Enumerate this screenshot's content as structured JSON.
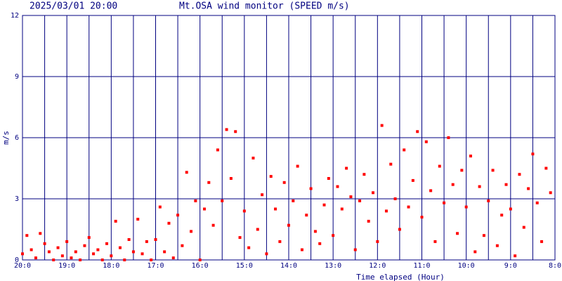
{
  "chart_data": {
    "type": "scatter",
    "timestamp": "2025/03/01 20:00",
    "title": "Mt.OSA wind monitor (SPEED m/s)",
    "x_label": "Time elapsed (Hour)",
    "y_label": "m/s",
    "color": "#ff0000",
    "grid_color": "#000080",
    "grid": true,
    "xlim": [
      0,
      12
    ],
    "xticks": [
      {
        "value": 0,
        "label": "20:0"
      },
      {
        "value": 1,
        "label": "19:0"
      },
      {
        "value": 2,
        "label": "18:0"
      },
      {
        "value": 3,
        "label": "17:0"
      },
      {
        "value": 4,
        "label": "16:0"
      },
      {
        "value": 5,
        "label": "15:0"
      },
      {
        "value": 6,
        "label": "14:0"
      },
      {
        "value": 7,
        "label": "13:0"
      },
      {
        "value": 8,
        "label": "12:0"
      },
      {
        "value": 9,
        "label": "11:0"
      },
      {
        "value": 10,
        "label": "10:0"
      },
      {
        "value": 11,
        "label": "9:0"
      },
      {
        "value": 12,
        "label": "8:0"
      }
    ],
    "x_minor_ticks": [
      0.5,
      1.5,
      2.5,
      3.5,
      4.5,
      5.5,
      6.5,
      7.5,
      8.5,
      9.5,
      10.5,
      11.5
    ],
    "ylim": [
      0,
      12
    ],
    "yticks": [
      0,
      3,
      6,
      9,
      12
    ],
    "x": [
      0,
      0.1,
      0.2,
      0.3,
      0.4,
      0.5,
      0.6,
      0.7,
      0.8,
      0.9,
      1,
      1.1,
      1.2,
      1.3,
      1.4,
      1.5,
      1.6,
      1.7,
      1.8,
      1.9,
      2,
      2.1,
      2.2,
      2.3,
      2.4,
      2.5,
      2.6,
      2.7,
      2.8,
      2.9,
      3,
      3.1,
      3.2,
      3.3,
      3.4,
      3.5,
      3.6,
      3.7,
      3.8,
      3.9,
      4,
      4.1,
      4.2,
      4.3,
      4.4,
      4.5,
      4.6,
      4.7,
      4.8,
      4.9,
      5,
      5.1,
      5.2,
      5.3,
      5.4,
      5.5,
      5.6,
      5.7,
      5.8,
      5.9,
      6,
      6.1,
      6.2,
      6.3,
      6.4,
      6.5,
      6.6,
      6.7,
      6.8,
      6.9,
      7,
      7.1,
      7.2,
      7.3,
      7.4,
      7.5,
      7.6,
      7.7,
      7.8,
      7.9,
      8,
      8.1,
      8.2,
      8.3,
      8.4,
      8.5,
      8.6,
      8.7,
      8.8,
      8.9,
      9,
      9.1,
      9.2,
      9.3,
      9.4,
      9.5,
      9.6,
      9.7,
      9.8,
      9.9,
      10,
      10.1,
      10.2,
      10.3,
      10.4,
      10.5,
      10.6,
      10.7,
      10.8,
      10.9,
      11,
      11.1,
      11.2,
      11.3,
      11.4,
      11.5,
      11.6,
      11.7,
      11.8,
      11.9
    ],
    "values": [
      0.3,
      1.2,
      0.5,
      0.1,
      1.3,
      0.8,
      0.4,
      0,
      0.6,
      0.2,
      0.9,
      0.1,
      0.4,
      0,
      0.7,
      1.1,
      0.3,
      0.5,
      0,
      0.8,
      0.2,
      1.9,
      0.6,
      0,
      1.0,
      0.4,
      2.0,
      0.3,
      0.9,
      0,
      1.0,
      2.6,
      0.4,
      1.8,
      0.1,
      2.2,
      0.7,
      4.3,
      1.4,
      2.9,
      0,
      2.5,
      3.8,
      1.7,
      5.4,
      2.9,
      6.4,
      4.0,
      6.3,
      1.1,
      2.4,
      0.6,
      5.0,
      1.5,
      3.2,
      0.3,
      4.1,
      2.5,
      0.9,
      3.8,
      1.7,
      2.9,
      4.6,
      0.5,
      2.2,
      3.5,
      1.4,
      0.8,
      2.7,
      4.0,
      1.2,
      3.6,
      2.5,
      4.5,
      3.1,
      0.5,
      2.9,
      4.2,
      1.9,
      3.3,
      0.9,
      6.6,
      2.4,
      4.7,
      3.0,
      1.5,
      5.4,
      2.6,
      3.9,
      6.3,
      2.1,
      5.8,
      3.4,
      0.9,
      4.6,
      2.8,
      6.0,
      3.7,
      1.3,
      4.4,
      2.6,
      5.1,
      0.4,
      3.6,
      1.2,
      2.9,
      4.4,
      0.7,
      2.2,
      3.7,
      2.5,
      0.2,
      4.2,
      1.6,
      3.5,
      5.2,
      2.8,
      0.9,
      4.5,
      3.3
    ]
  }
}
